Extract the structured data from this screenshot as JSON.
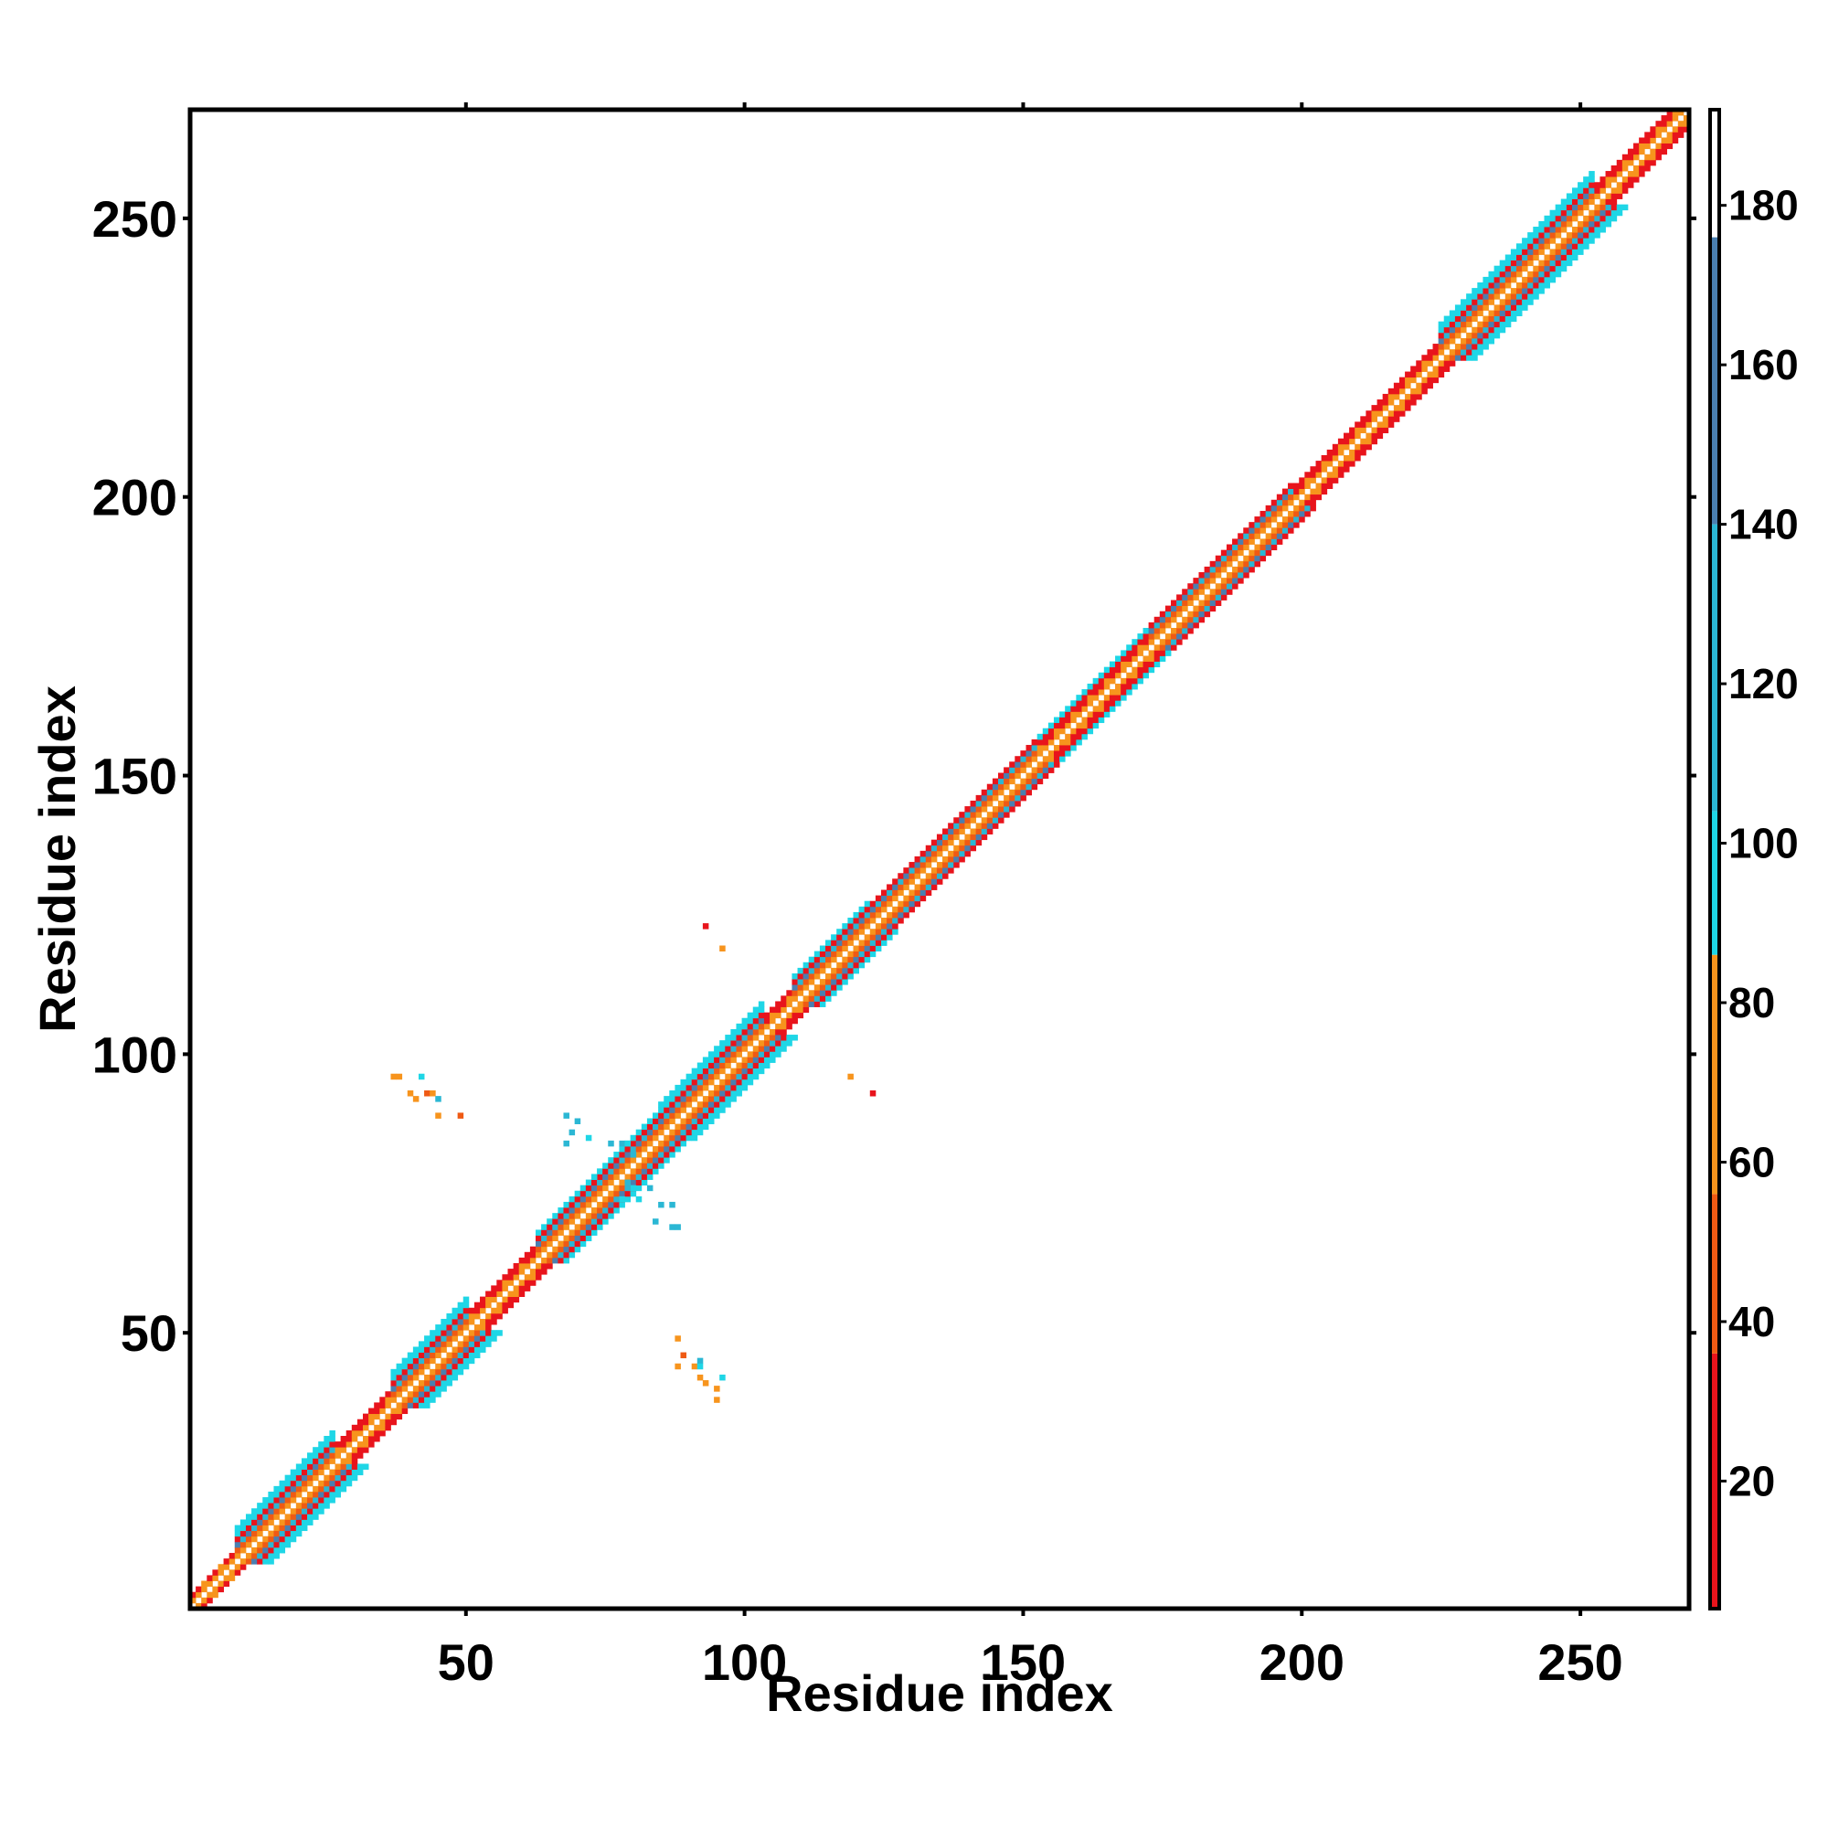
{
  "chart_data": {
    "type": "heatmap",
    "title": "",
    "xlabel": "Residue index",
    "ylabel": "Residue index",
    "xlim": [
      1,
      269
    ],
    "ylim": [
      1,
      269
    ],
    "x_ticks": [
      50,
      100,
      150,
      200,
      250
    ],
    "y_ticks": [
      50,
      100,
      150,
      200,
      250
    ],
    "colorbar": {
      "range": [
        4,
        192
      ],
      "ticks": [
        20,
        40,
        60,
        80,
        100,
        120,
        140,
        160,
        180
      ],
      "bands": [
        {
          "from": 4,
          "to": 36,
          "color": "#e8141c"
        },
        {
          "from": 36,
          "to": 56,
          "color": "#ef5a14"
        },
        {
          "from": 56,
          "to": 86,
          "color": "#f7941d"
        },
        {
          "from": 86,
          "to": 104,
          "color": "#1fd6e6"
        },
        {
          "from": 104,
          "to": 140,
          "color": "#2bb7d4"
        },
        {
          "from": 140,
          "to": 176,
          "color": "#4a7fb0"
        },
        {
          "from": 176,
          "to": 192,
          "color": "#ffffff"
        }
      ]
    },
    "colors": {
      "red": "#e8141c",
      "redorange": "#ef5a14",
      "orange": "#f7941d",
      "cyan": "#1fd6e6",
      "teal": "#2bb7d4",
      "steel": "#4a7fb0"
    },
    "diagonal_segments": [
      {
        "start": 1,
        "end": 8,
        "width": 2,
        "type": "turn"
      },
      {
        "start": 9,
        "end": 26,
        "width": 6,
        "type": "helix"
      },
      {
        "start": 27,
        "end": 36,
        "width": 3,
        "type": "turn"
      },
      {
        "start": 37,
        "end": 50,
        "width": 6,
        "type": "helix"
      },
      {
        "start": 51,
        "end": 62,
        "width": 3,
        "type": "turn"
      },
      {
        "start": 63,
        "end": 84,
        "width": 5,
        "type": "helix"
      },
      {
        "start": 85,
        "end": 103,
        "width": 6,
        "type": "helix"
      },
      {
        "start": 104,
        "end": 108,
        "width": 3,
        "type": "turn"
      },
      {
        "start": 109,
        "end": 122,
        "width": 5,
        "type": "helix"
      },
      {
        "start": 123,
        "end": 152,
        "width": 4,
        "type": "helix"
      },
      {
        "start": 153,
        "end": 172,
        "width": 4,
        "type": "turn"
      },
      {
        "start": 173,
        "end": 198,
        "width": 4,
        "type": "helix"
      },
      {
        "start": 199,
        "end": 224,
        "width": 3,
        "type": "turn"
      },
      {
        "start": 225,
        "end": 252,
        "width": 6,
        "type": "helix"
      },
      {
        "start": 253,
        "end": 269,
        "width": 3,
        "type": "turn"
      }
    ],
    "off_diagonal_contacts": [
      {
        "x": 37,
        "y": 96,
        "c": "orange"
      },
      {
        "x": 38,
        "y": 96,
        "c": "orange"
      },
      {
        "x": 42,
        "y": 96,
        "c": "cyan"
      },
      {
        "x": 40,
        "y": 93,
        "c": "orange"
      },
      {
        "x": 43,
        "y": 93,
        "c": "redorange"
      },
      {
        "x": 44,
        "y": 93,
        "c": "orange"
      },
      {
        "x": 41,
        "y": 92,
        "c": "orange"
      },
      {
        "x": 45,
        "y": 92,
        "c": "teal"
      },
      {
        "x": 45,
        "y": 89,
        "c": "orange"
      },
      {
        "x": 49,
        "y": 89,
        "c": "redorange"
      },
      {
        "x": 68,
        "y": 89,
        "c": "teal"
      },
      {
        "x": 70,
        "y": 88,
        "c": "teal"
      },
      {
        "x": 69,
        "y": 86,
        "c": "teal"
      },
      {
        "x": 72,
        "y": 85,
        "c": "cyan"
      },
      {
        "x": 68,
        "y": 84,
        "c": "teal"
      },
      {
        "x": 76,
        "y": 84,
        "c": "teal"
      },
      {
        "x": 78,
        "y": 84,
        "c": "teal"
      },
      {
        "x": 79,
        "y": 84,
        "c": "cyan"
      },
      {
        "x": 80,
        "y": 82,
        "c": "teal"
      },
      {
        "x": 73,
        "y": 78,
        "c": "cyan"
      },
      {
        "x": 79,
        "y": 77,
        "c": "teal"
      },
      {
        "x": 80,
        "y": 76,
        "c": "cyan"
      },
      {
        "x": 83,
        "y": 76,
        "c": "teal"
      },
      {
        "x": 78,
        "y": 74,
        "c": "cyan"
      },
      {
        "x": 81,
        "y": 74,
        "c": "cyan"
      },
      {
        "x": 85,
        "y": 73,
        "c": "teal"
      },
      {
        "x": 87,
        "y": 73,
        "c": "teal"
      },
      {
        "x": 84,
        "y": 70,
        "c": "teal"
      },
      {
        "x": 87,
        "y": 69,
        "c": "teal"
      },
      {
        "x": 88,
        "y": 69,
        "c": "teal"
      },
      {
        "x": 88,
        "y": 49,
        "c": "orange"
      },
      {
        "x": 89,
        "y": 46,
        "c": "redorange"
      },
      {
        "x": 88,
        "y": 44,
        "c": "orange"
      },
      {
        "x": 91,
        "y": 44,
        "c": "orange"
      },
      {
        "x": 92,
        "y": 45,
        "c": "teal"
      },
      {
        "x": 92,
        "y": 44,
        "c": "cyan"
      },
      {
        "x": 92,
        "y": 42,
        "c": "orange"
      },
      {
        "x": 93,
        "y": 41,
        "c": "orange"
      },
      {
        "x": 96,
        "y": 42,
        "c": "cyan"
      },
      {
        "x": 95,
        "y": 40,
        "c": "orange"
      },
      {
        "x": 95,
        "y": 38,
        "c": "orange"
      },
      {
        "x": 93,
        "y": 123,
        "c": "red"
      },
      {
        "x": 96,
        "y": 119,
        "c": "orange"
      },
      {
        "x": 119,
        "y": 96,
        "c": "orange"
      },
      {
        "x": 123,
        "y": 93,
        "c": "red"
      }
    ]
  }
}
